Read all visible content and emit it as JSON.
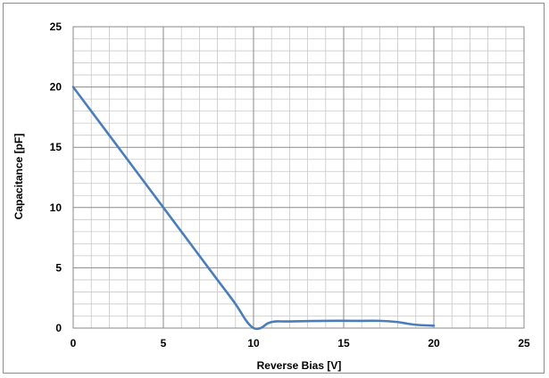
{
  "chart_data": {
    "type": "line",
    "title": "",
    "xlabel": "Reverse Bias [V]",
    "ylabel": "Capacitance [pF]",
    "xlim": [
      0,
      25
    ],
    "ylim": [
      0,
      25
    ],
    "x_major_ticks": [
      0,
      5,
      10,
      15,
      20,
      25
    ],
    "y_major_ticks": [
      0,
      5,
      10,
      15,
      20,
      25
    ],
    "x_minor_step": 1,
    "y_minor_step": 1,
    "grid": true,
    "legend": "none",
    "series": [
      {
        "color": "#4a7ebb",
        "x": [
          0,
          2,
          4,
          6,
          8,
          9,
          9.6,
          10,
          10.4,
          10.8,
          11.2,
          12,
          14,
          16,
          17,
          18,
          18.6,
          19.2,
          20
        ],
        "y": [
          20,
          16,
          12,
          8,
          4,
          2,
          0.6,
          0,
          0,
          0.4,
          0.55,
          0.55,
          0.6,
          0.6,
          0.6,
          0.5,
          0.35,
          0.25,
          0.2
        ]
      }
    ]
  }
}
